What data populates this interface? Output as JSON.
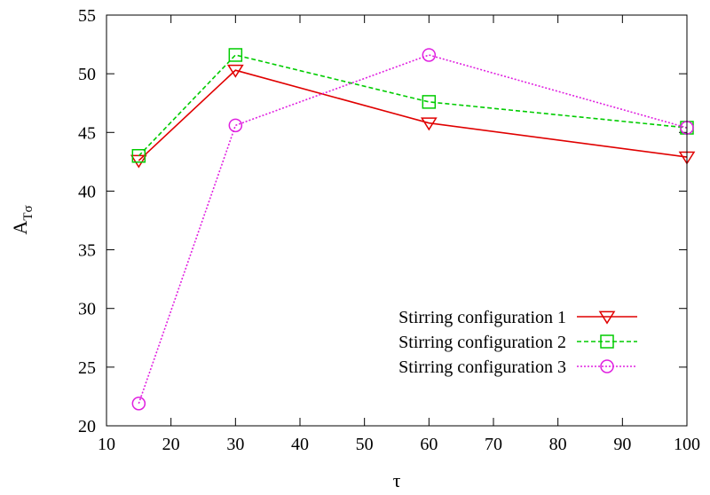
{
  "chart_data": {
    "type": "line",
    "xlabel": "τ",
    "ylabel": {
      "base": "A",
      "sub": "Tσ"
    },
    "xlim": [
      10,
      100
    ],
    "ylim": [
      20,
      55
    ],
    "xticks": [
      10,
      20,
      30,
      40,
      50,
      60,
      70,
      80,
      90,
      100
    ],
    "yticks": [
      20,
      25,
      30,
      35,
      40,
      45,
      50,
      55
    ],
    "grid": false,
    "legend_position": "bottom-right",
    "series": [
      {
        "name": "Stirring configuration 1",
        "color": "#e00000",
        "dash": "solid",
        "marker": "triangle-down",
        "x": [
          15,
          30,
          60,
          100
        ],
        "y": [
          42.6,
          50.3,
          45.8,
          42.9
        ]
      },
      {
        "name": "Stirring configuration 2",
        "color": "#00cc00",
        "dash": "dashed",
        "marker": "square",
        "x": [
          15,
          30,
          60,
          100
        ],
        "y": [
          43.0,
          51.6,
          47.6,
          45.4
        ]
      },
      {
        "name": "Stirring configuration 3",
        "color": "#e020e0",
        "dash": "dotted",
        "marker": "circle",
        "x": [
          15,
          30,
          60,
          100
        ],
        "y": [
          21.9,
          45.6,
          51.6,
          45.4
        ]
      }
    ]
  }
}
